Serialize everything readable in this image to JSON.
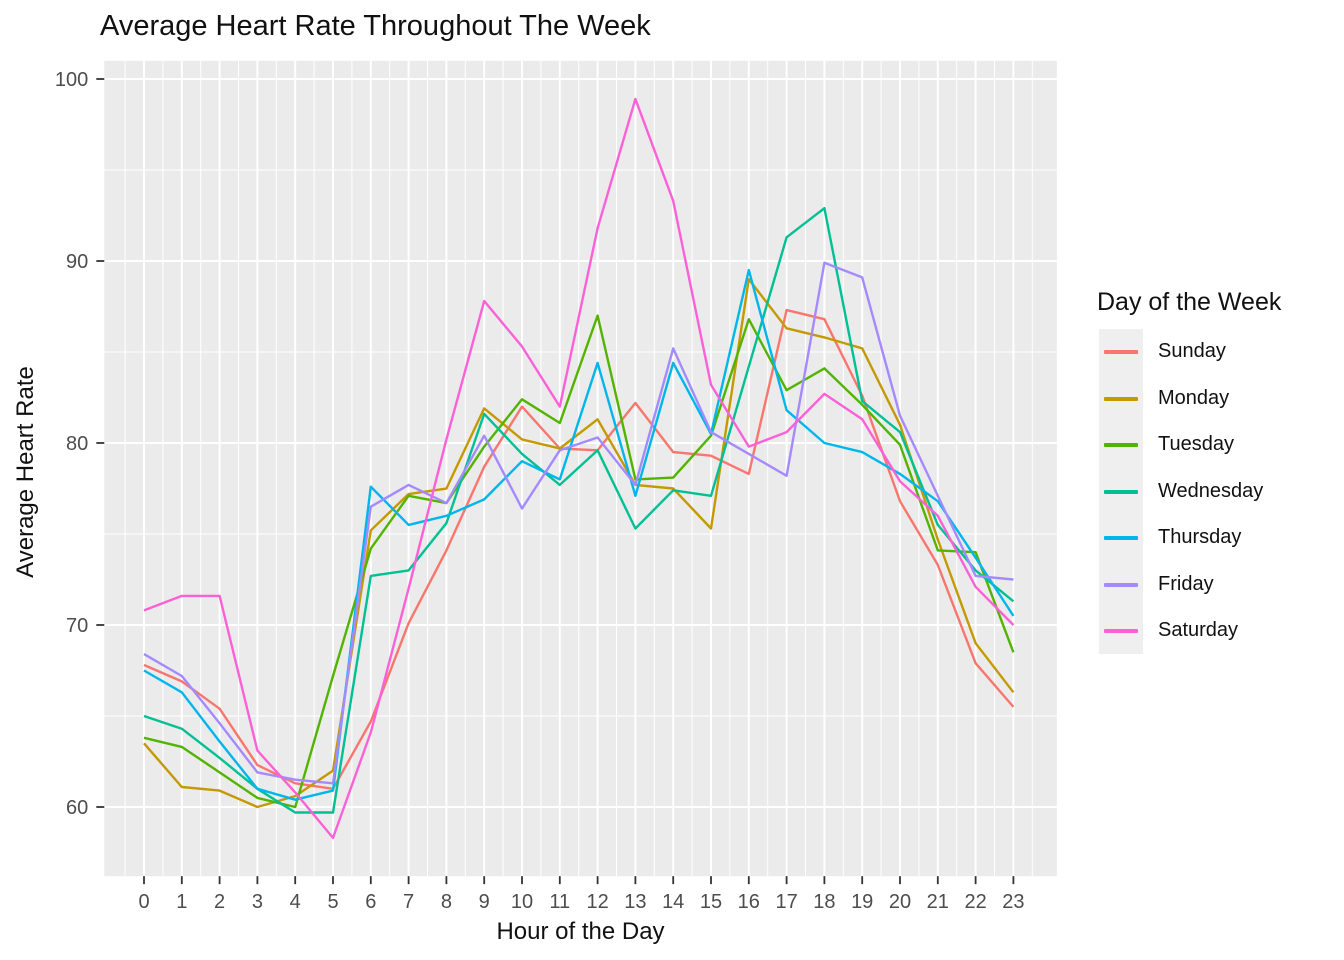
{
  "title": "Average Heart Rate Throughout The Week",
  "panel": {
    "bg": "#ebebeb",
    "grid_color": "#ffffff",
    "tick_color": "#333333",
    "tick_label_color": "#4d4d4d",
    "legend_key_bg": "#efefef"
  },
  "legend": {
    "title": "Day of the Week",
    "position": "right"
  },
  "chart_data": {
    "type": "line",
    "title": "Average Heart Rate Throughout The Week",
    "xlabel": "Hour of the Day",
    "ylabel": "Average Heart Rate",
    "x": [
      0,
      1,
      2,
      3,
      4,
      5,
      6,
      7,
      8,
      9,
      10,
      11,
      12,
      13,
      14,
      15,
      16,
      17,
      18,
      19,
      20,
      21,
      22,
      23
    ],
    "x_ticks": [
      "0",
      "1",
      "2",
      "3",
      "4",
      "5",
      "6",
      "7",
      "8",
      "9",
      "10",
      "11",
      "12",
      "13",
      "14",
      "15",
      "16",
      "17",
      "18",
      "19",
      "20",
      "21",
      "22",
      "23"
    ],
    "y_ticks": [
      "60",
      "70",
      "80",
      "90",
      "100"
    ],
    "y_tick_values": [
      60,
      70,
      80,
      90,
      100
    ],
    "y_minor": [
      65,
      75,
      85,
      95
    ],
    "xlim": [
      -1.05,
      24.15
    ],
    "ylim": [
      56.2,
      101.0
    ],
    "grid": "white major+minor gridlines on gray panel",
    "legend_title": "Day of the Week",
    "series": [
      {
        "name": "Sunday",
        "color": "#F8766D",
        "values": [
          67.8,
          66.9,
          65.4,
          62.3,
          61.3,
          61.0,
          64.7,
          70.1,
          74.1,
          78.7,
          82.0,
          79.7,
          79.6,
          82.2,
          79.5,
          79.3,
          78.3,
          87.3,
          86.8,
          82.6,
          76.8,
          73.3,
          67.9,
          65.5
        ]
      },
      {
        "name": "Monday",
        "color": "#C49A00",
        "values": [
          63.5,
          61.1,
          60.9,
          60.0,
          60.6,
          62.0,
          75.2,
          77.2,
          77.5,
          81.9,
          80.2,
          79.7,
          81.3,
          77.7,
          77.5,
          75.3,
          89.0,
          86.3,
          85.8,
          85.2,
          81.0,
          74.7,
          69.0,
          66.3
        ]
      },
      {
        "name": "Tuesday",
        "color": "#53B400",
        "values": [
          63.8,
          63.3,
          61.9,
          60.5,
          60.0,
          67.2,
          74.2,
          77.1,
          76.7,
          79.8,
          82.4,
          81.1,
          87.0,
          78.0,
          78.1,
          80.4,
          86.8,
          82.9,
          84.1,
          82.1,
          79.9,
          74.1,
          74.0,
          68.5
        ]
      },
      {
        "name": "Wednesday",
        "color": "#00C094",
        "values": [
          65.0,
          64.3,
          62.7,
          61.0,
          59.7,
          59.7,
          72.7,
          73.0,
          75.6,
          81.6,
          79.4,
          77.7,
          79.6,
          75.3,
          77.4,
          77.1,
          84.2,
          91.3,
          92.9,
          82.3,
          80.6,
          75.5,
          73.0,
          71.3
        ]
      },
      {
        "name": "Thursday",
        "color": "#00B6EB",
        "values": [
          67.5,
          66.3,
          63.6,
          61.0,
          60.4,
          60.9,
          77.6,
          75.5,
          76.0,
          76.9,
          79.0,
          78.0,
          84.4,
          77.1,
          84.4,
          80.5,
          89.5,
          81.8,
          80.0,
          79.5,
          78.3,
          76.8,
          73.7,
          70.5
        ]
      },
      {
        "name": "Friday",
        "color": "#A58AFF",
        "values": [
          68.4,
          67.2,
          64.6,
          61.9,
          61.5,
          61.3,
          76.5,
          77.7,
          76.7,
          80.4,
          76.4,
          79.6,
          80.3,
          77.7,
          85.2,
          80.6,
          79.4,
          78.2,
          89.9,
          89.1,
          81.5,
          77.1,
          72.7,
          72.5
        ]
      },
      {
        "name": "Saturday",
        "color": "#FB61D7",
        "values": [
          70.8,
          71.6,
          71.6,
          63.1,
          60.8,
          58.3,
          64.1,
          72.0,
          80.2,
          87.8,
          85.3,
          82.0,
          91.8,
          98.9,
          93.3,
          83.2,
          79.8,
          80.6,
          82.7,
          81.3,
          77.9,
          76.0,
          72.1,
          70.0
        ]
      }
    ]
  }
}
